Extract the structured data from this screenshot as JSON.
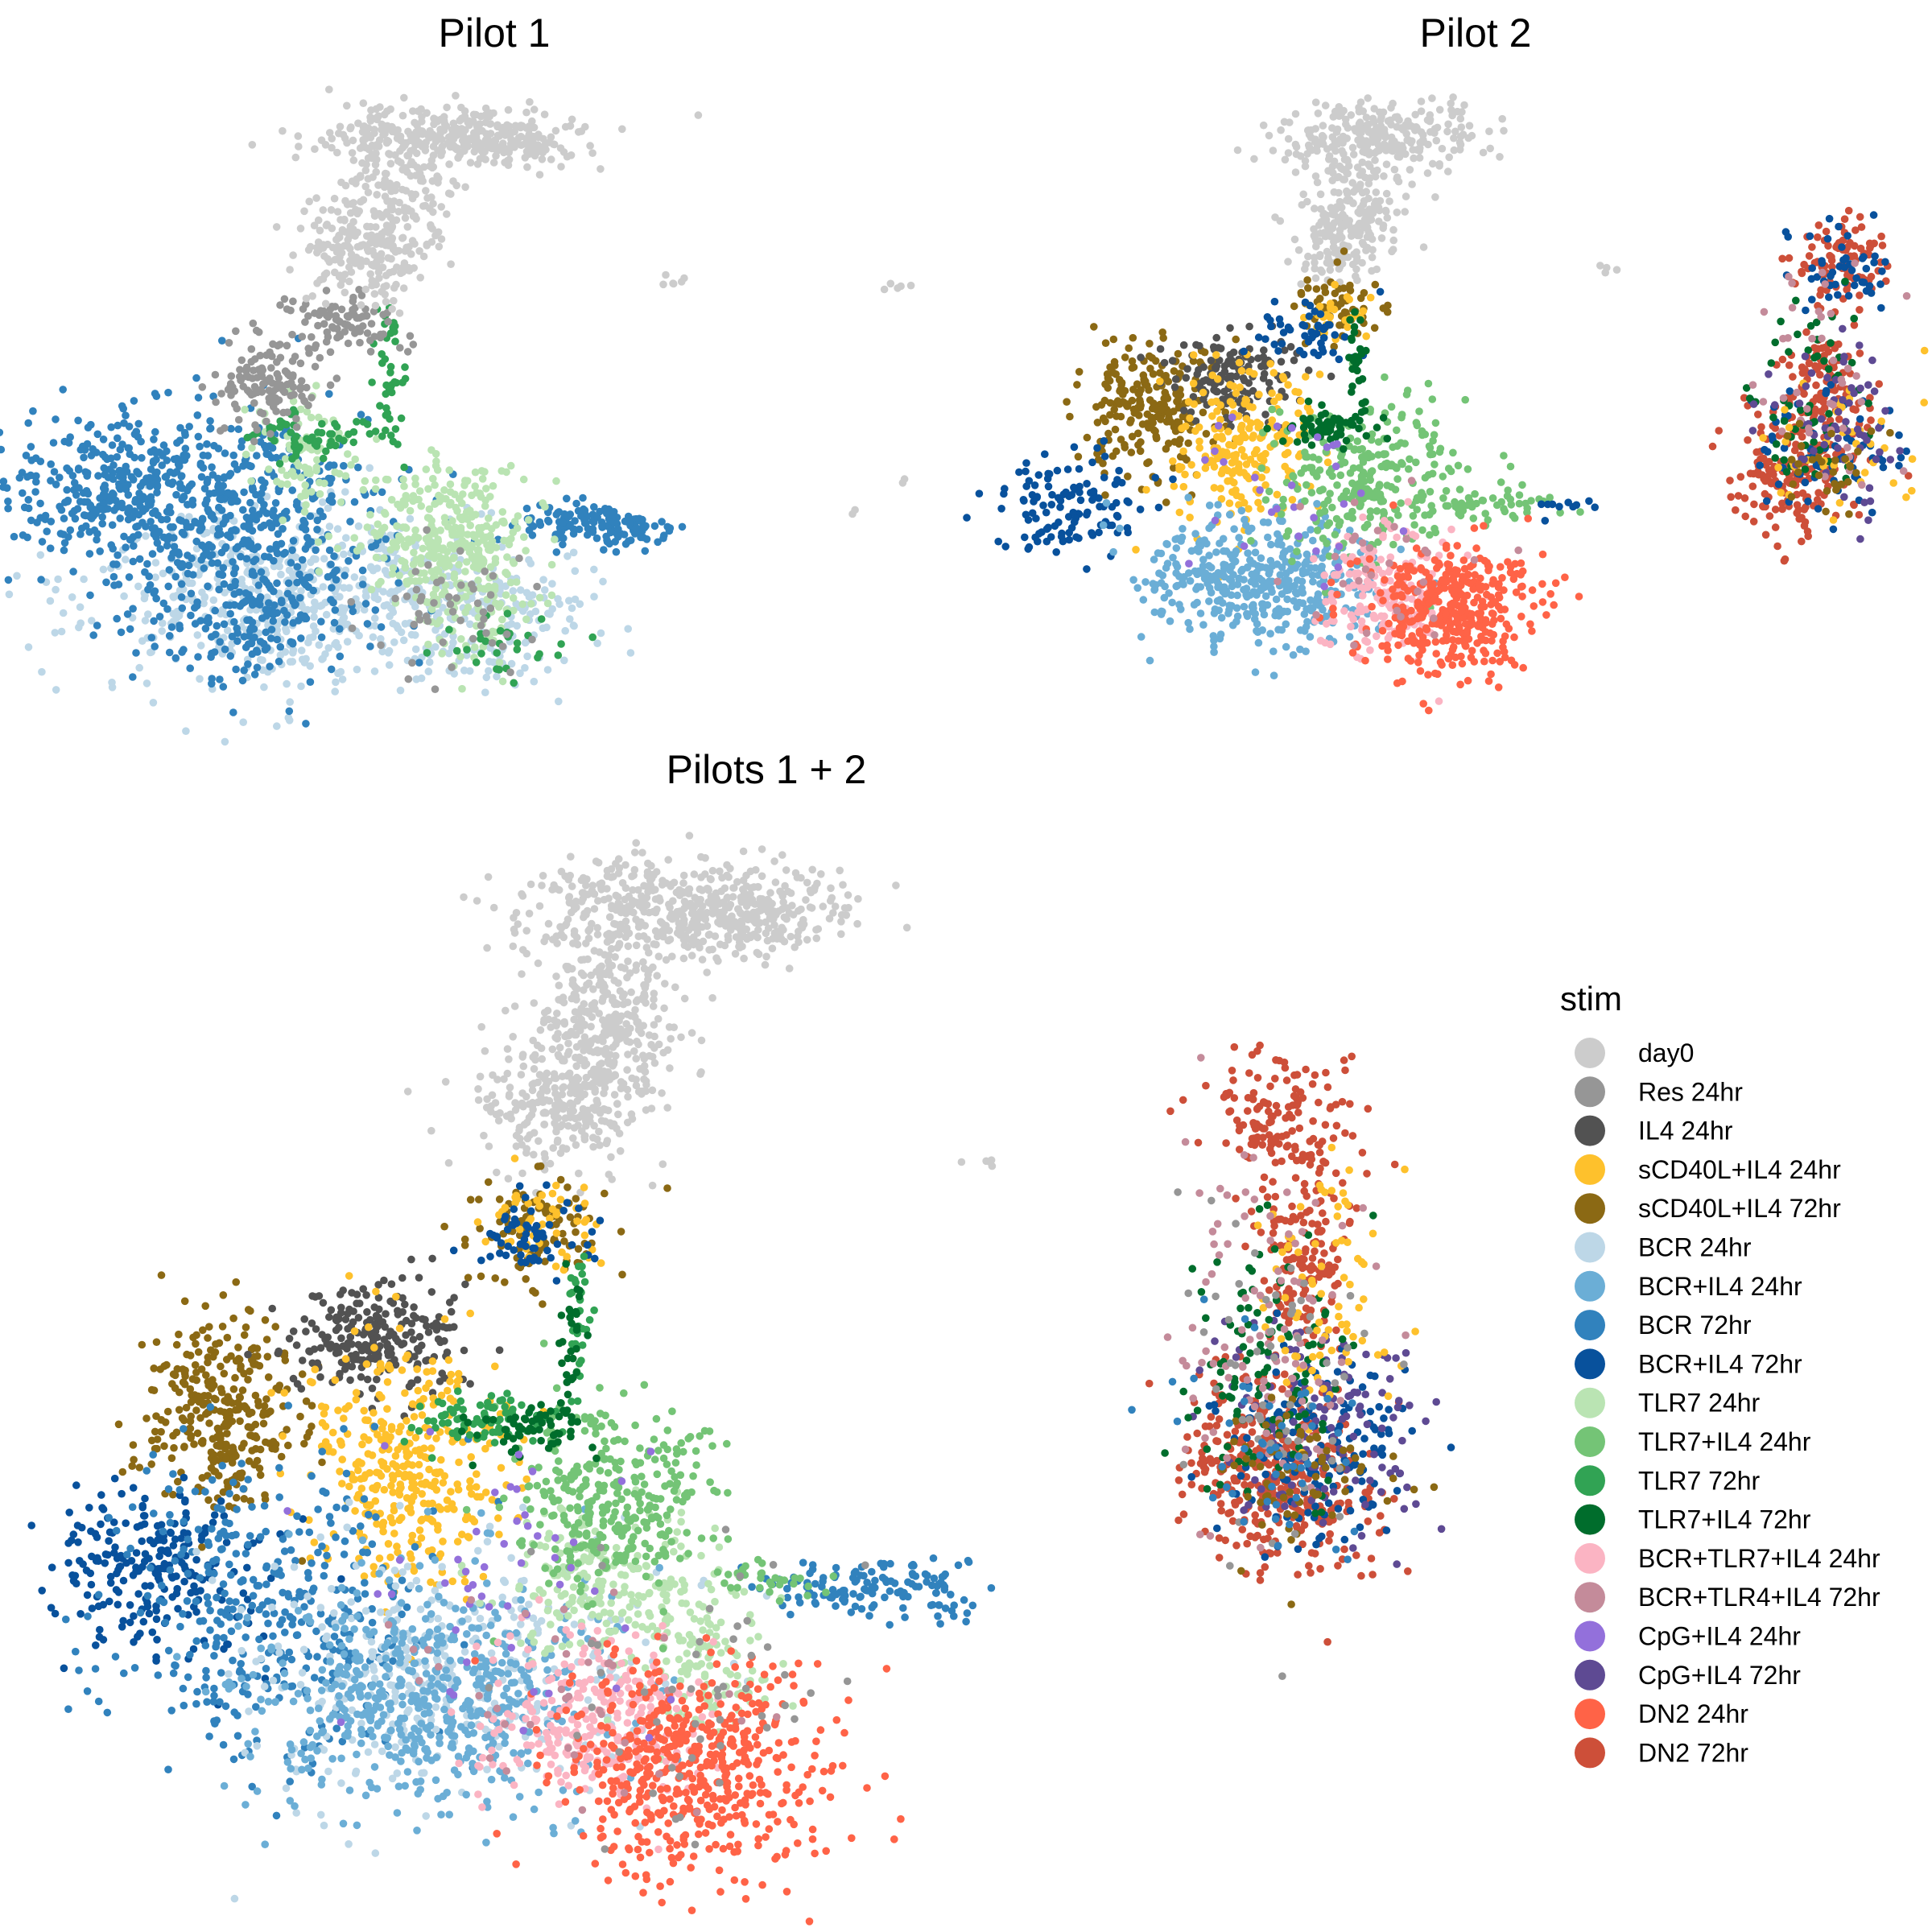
{
  "figure": {
    "legend_title": "stim"
  },
  "chart_data": [
    {
      "type": "scatter",
      "title": "Pilot 1",
      "xlabel": "",
      "ylabel": "",
      "axes": "none",
      "grid": false,
      "legend": "shared-right",
      "groups_present": [
        "day0",
        "Res 24hr",
        "BCR 24hr",
        "BCR 72hr",
        "TLR7 24hr",
        "TLR7 72hr"
      ]
    },
    {
      "type": "scatter",
      "title": "Pilot 2",
      "xlabel": "",
      "ylabel": "",
      "axes": "none",
      "grid": false,
      "legend": "shared-right",
      "groups_present": [
        "day0",
        "IL4 24hr",
        "sCD40L+IL4 24hr",
        "sCD40L+IL4 72hr",
        "BCR+IL4 24hr",
        "BCR+IL4 72hr",
        "TLR7+IL4 24hr",
        "TLR7+IL4 72hr",
        "BCR+TLR7+IL4 24hr",
        "BCR+TLR4+IL4 72hr",
        "CpG+IL4 24hr",
        "CpG+IL4 72hr",
        "DN2 24hr",
        "DN2 72hr"
      ]
    },
    {
      "type": "scatter",
      "title": "Pilots 1 + 2",
      "xlabel": "",
      "ylabel": "",
      "axes": "none",
      "grid": false,
      "legend": "right",
      "groups_present": [
        "day0",
        "Res 24hr",
        "IL4 24hr",
        "sCD40L+IL4 24hr",
        "sCD40L+IL4 72hr",
        "BCR 24hr",
        "BCR+IL4 24hr",
        "BCR 72hr",
        "BCR+IL4 72hr",
        "TLR7 24hr",
        "TLR7+IL4 24hr",
        "TLR7 72hr",
        "TLR7+IL4 72hr",
        "BCR+TLR7+IL4 24hr",
        "BCR+TLR4+IL4 72hr",
        "CpG+IL4 24hr",
        "CpG+IL4 72hr",
        "DN2 24hr",
        "DN2 72hr"
      ]
    }
  ],
  "legend": {
    "title": "stim",
    "items": [
      {
        "label": "day0",
        "color": "#CCCCCC"
      },
      {
        "label": "Res 24hr",
        "color": "#969696"
      },
      {
        "label": "IL4 24hr",
        "color": "#525252"
      },
      {
        "label": "sCD40L+IL4 24hr",
        "color": "#FEC12C"
      },
      {
        "label": "sCD40L+IL4 72hr",
        "color": "#8B6914"
      },
      {
        "label": "BCR 24hr",
        "color": "#BDD7E7"
      },
      {
        "label": "BCR+IL4 24hr",
        "color": "#6BAED6"
      },
      {
        "label": "BCR 72hr",
        "color": "#3182BD"
      },
      {
        "label": "BCR+IL4 72hr",
        "color": "#08519C"
      },
      {
        "label": "TLR7 24hr",
        "color": "#BAE4B3"
      },
      {
        "label": "TLR7+IL4 24hr",
        "color": "#74C476"
      },
      {
        "label": "TLR7 72hr",
        "color": "#31A354"
      },
      {
        "label": "TLR7+IL4 72hr",
        "color": "#006D2C"
      },
      {
        "label": "BCR+TLR7+IL4 24hr",
        "color": "#FBB4C3"
      },
      {
        "label": "BCR+TLR4+IL4 72hr",
        "color": "#C48B9A"
      },
      {
        "label": "CpG+IL4 24hr",
        "color": "#9370DB"
      },
      {
        "label": "CpG+IL4 72hr",
        "color": "#5E4A93"
      },
      {
        "label": "DN2 24hr",
        "color": "#FF6347"
      },
      {
        "label": "DN2 72hr",
        "color": "#CD4F39"
      }
    ]
  }
}
